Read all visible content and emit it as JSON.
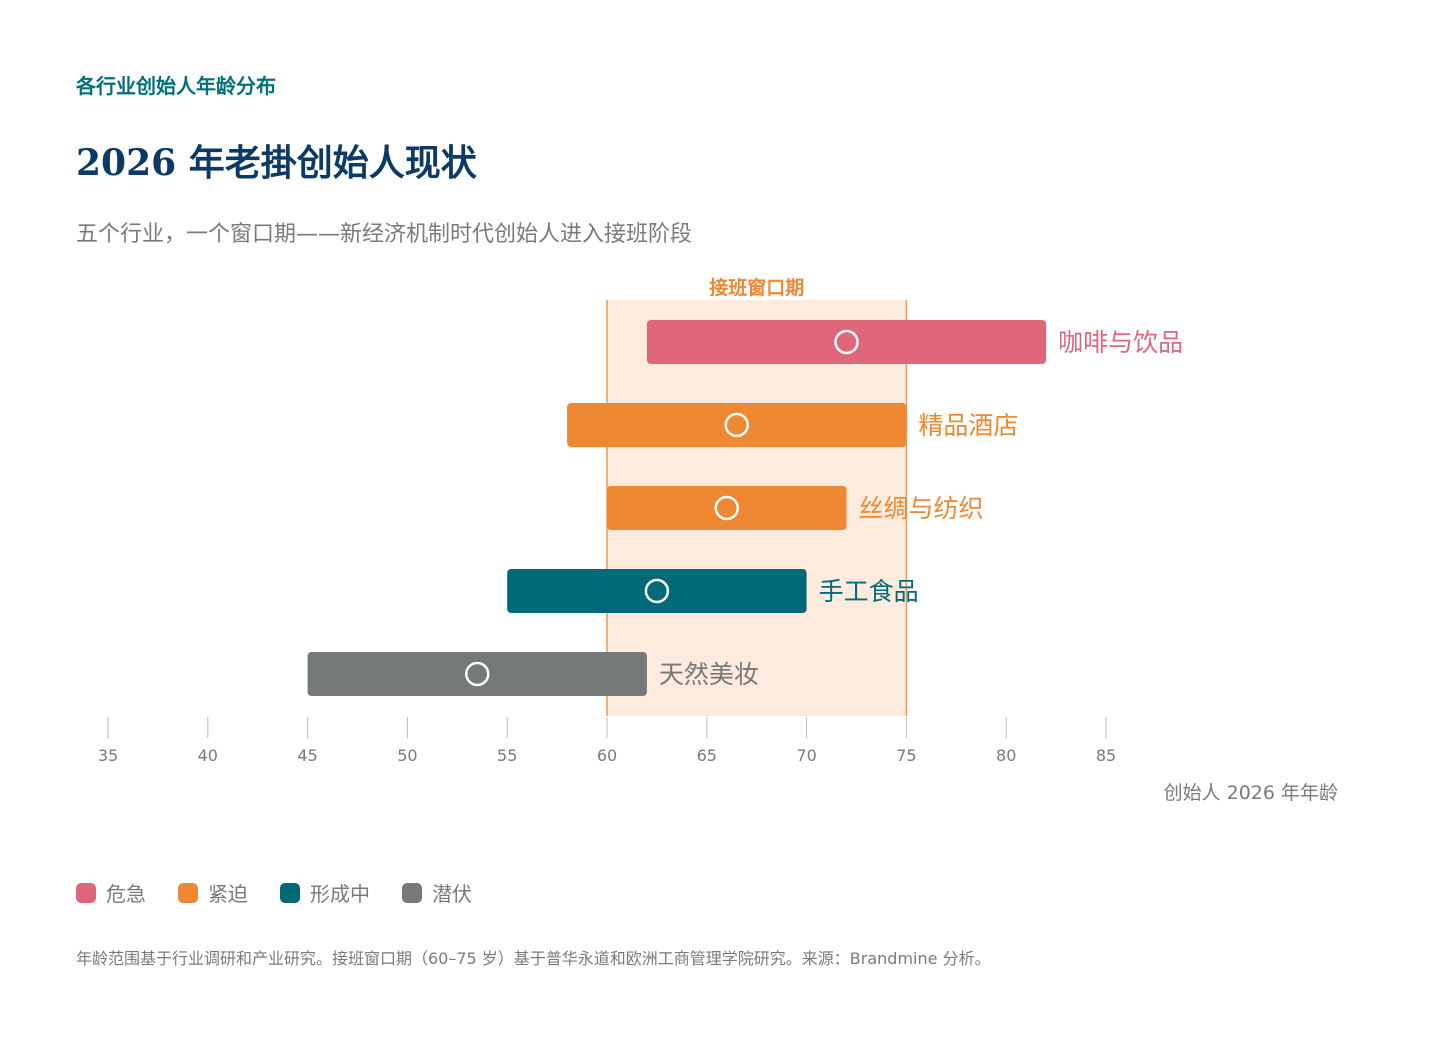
{
  "header": {
    "kicker": "各行业创始人年龄分布",
    "title": "2026 年老掛创始人现状",
    "subtitle": "五个行业，一个窗口期——新经济机制时代创始人进入接班阶段"
  },
  "chart_data": {
    "type": "range-bar",
    "xlabel": "创始人 2026 年年龄",
    "xlim": [
      35,
      85
    ],
    "xticks": [
      35,
      40,
      45,
      50,
      55,
      60,
      65,
      70,
      75,
      80,
      85
    ],
    "window": {
      "label": "接班窗口期",
      "range": [
        60,
        75
      ],
      "color": "#ee8833",
      "fill": "#fdebdd"
    },
    "series": [
      {
        "category": "咖啡与饮品",
        "min": 62,
        "max": 82,
        "median": 72,
        "status": "危急"
      },
      {
        "category": "精品酒店",
        "min": 58,
        "max": 75,
        "median": 66.5,
        "status": "紧迫"
      },
      {
        "category": "丝绸与纺织",
        "min": 60,
        "max": 72,
        "median": 66,
        "status": "紧迫"
      },
      {
        "category": "手工食品",
        "min": 55,
        "max": 70,
        "median": 62.5,
        "status": "形成中"
      },
      {
        "category": "天然美妆",
        "min": 45,
        "max": 62,
        "median": 53.5,
        "status": "潜伏"
      }
    ],
    "status_colors": {
      "危急": "#e0677a",
      "紧迫": "#ee8833",
      "形成中": "#006a78",
      "潜伏": "#76797a"
    },
    "legend": [
      {
        "label": "危急",
        "color": "#e0677a"
      },
      {
        "label": "紧迫",
        "color": "#ee8833"
      },
      {
        "label": "形成中",
        "color": "#006a78"
      },
      {
        "label": "潜伏",
        "color": "#76797a"
      }
    ],
    "legend_position": "bottom-left",
    "grid": false
  },
  "footnote": "年龄范围基于行业调研和产业研究。接班窗口期（60–75 岁）基于普华永道和欧洲工商管理学院研究。来源：Brandmine 分析。"
}
